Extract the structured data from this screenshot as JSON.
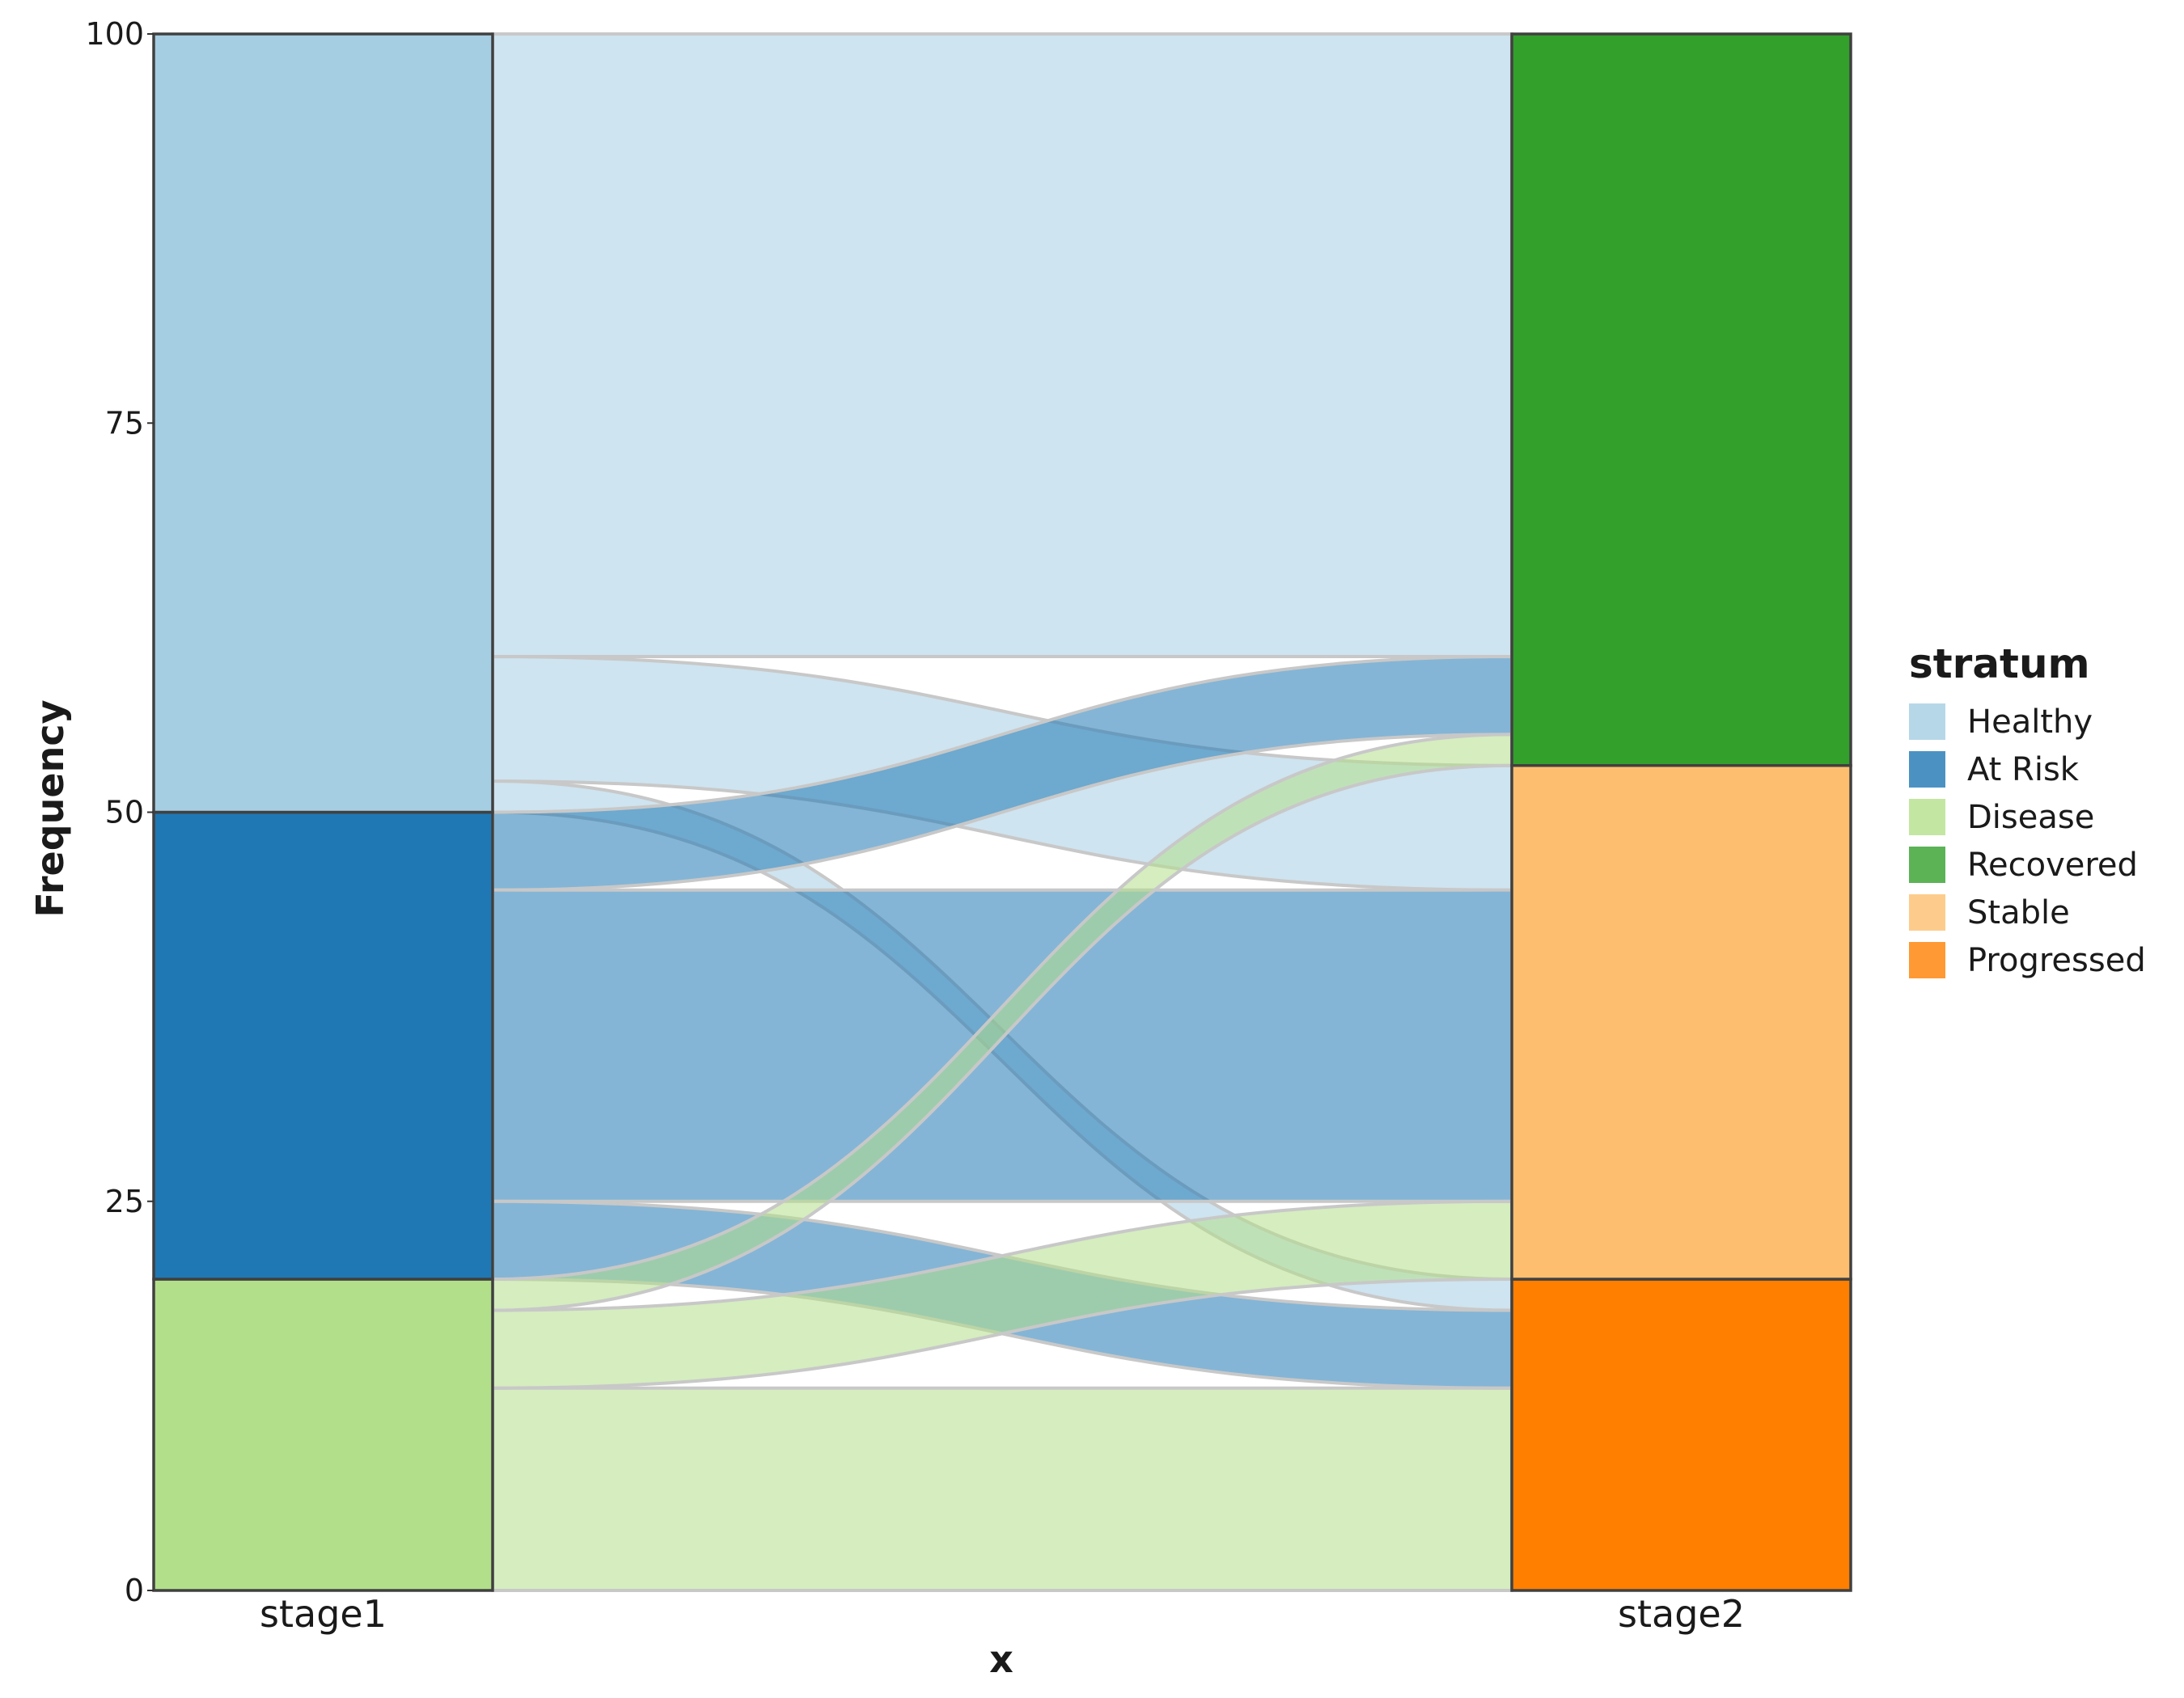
{
  "chart_data": {
    "type": "alluvial",
    "xlabel": "x",
    "ylabel": "Frequency",
    "ylim": [
      0,
      100
    ],
    "yticks": [
      0,
      25,
      50,
      75,
      100
    ],
    "axes": [
      "stage1",
      "stage2"
    ],
    "legend": {
      "title": "stratum",
      "placement": "right"
    },
    "strata": [
      {
        "name": "Healthy",
        "color": "#a6cee3",
        "legend_color": "#b6d7e8"
      },
      {
        "name": "At Risk",
        "color": "#1f78b4",
        "legend_color": "#4b92c3"
      },
      {
        "name": "Disease",
        "color": "#b2df8a",
        "legend_color": "#c3e7a2"
      },
      {
        "name": "Recovered",
        "color": "#33a02c",
        "legend_color": "#5cb356"
      },
      {
        "name": "Stable",
        "color": "#fdbf6f",
        "legend_color": "#fdcc8c"
      },
      {
        "name": "Progressed",
        "color": "#ff7f00",
        "legend_color": "#ff9933"
      }
    ],
    "stage1": [
      {
        "stratum": "Disease",
        "value": 20
      },
      {
        "stratum": "At Risk",
        "value": 30
      },
      {
        "stratum": "Healthy",
        "value": 50
      }
    ],
    "stage2": [
      {
        "stratum": "Progressed",
        "value": 20
      },
      {
        "stratum": "Stable",
        "value": 33
      },
      {
        "stratum": "Recovered",
        "value": 47
      }
    ],
    "flows": [
      {
        "from": "Healthy",
        "to": "Recovered",
        "value": 40
      },
      {
        "from": "Healthy",
        "to": "Stable",
        "value": 8
      },
      {
        "from": "Healthy",
        "to": "Progressed",
        "value": 2
      },
      {
        "from": "At Risk",
        "to": "Recovered",
        "value": 5
      },
      {
        "from": "At Risk",
        "to": "Stable",
        "value": 20
      },
      {
        "from": "At Risk",
        "to": "Progressed",
        "value": 5
      },
      {
        "from": "Disease",
        "to": "Recovered",
        "value": 2
      },
      {
        "from": "Disease",
        "to": "Stable",
        "value": 5
      },
      {
        "from": "Disease",
        "to": "Progressed",
        "value": 13
      }
    ],
    "flow_alpha": 0.55
  }
}
